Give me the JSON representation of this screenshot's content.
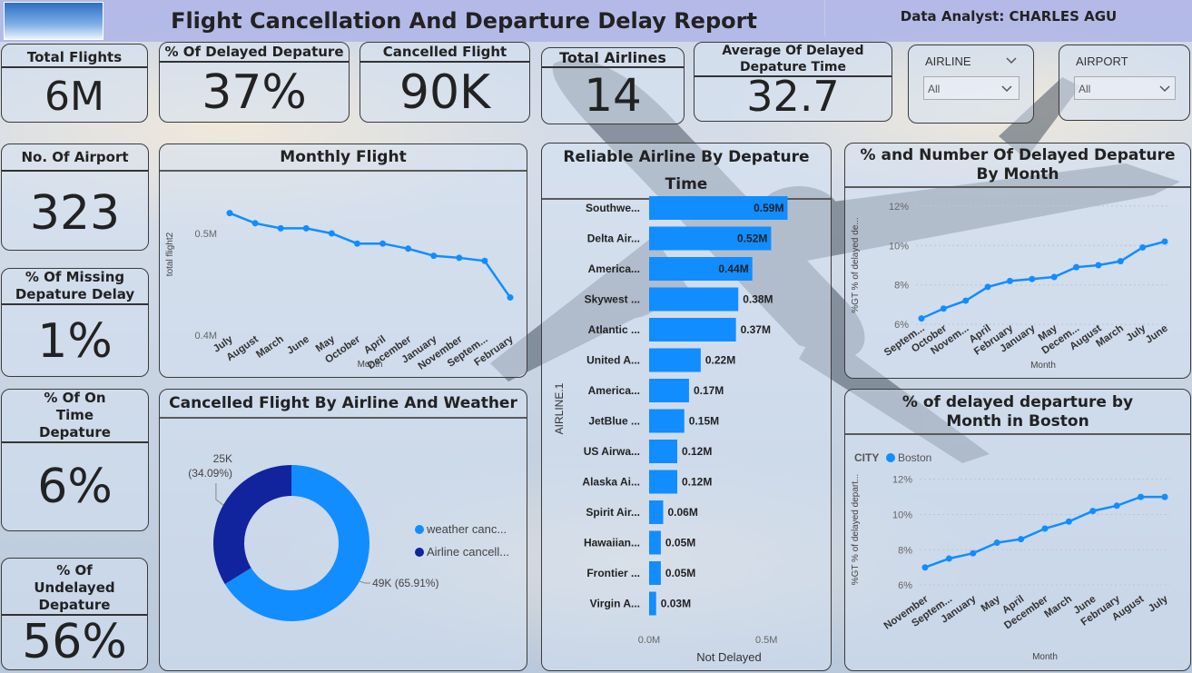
{
  "header": {
    "title": "Flight Cancellation And Departure Delay Report",
    "analyst_label": "Data Analyst:",
    "analyst_name": "CHARLES AGU"
  },
  "kpis": {
    "total_flights": {
      "label": "Total Flights",
      "value": "6M"
    },
    "delayed_departure": {
      "label": "% Of Delayed Depature",
      "value": "37%"
    },
    "cancelled_flight": {
      "label": "Cancelled Flight",
      "value": "90K"
    },
    "total_airlines": {
      "label": "Total Airlines",
      "value": "14"
    },
    "avg_delay": {
      "label": "Average Of Delayed Depature Time",
      "value": "32.7"
    },
    "no_airport": {
      "label": "No. Of Airport",
      "value": "323"
    },
    "missing_delay": {
      "label": "% Of Missing Depature Delay",
      "value": "1%"
    },
    "on_time": {
      "label": "% Of On Time Depature",
      "value": "6%"
    },
    "undelayed": {
      "label": "% Of Undelayed Depature",
      "value": "56%"
    }
  },
  "slicers": {
    "airline": {
      "label": "AIRLINE",
      "value": "All"
    },
    "airport": {
      "label": "AIRPORT",
      "value": "All"
    }
  },
  "colors": {
    "primary": "#118DFF",
    "dark": "#12239E"
  },
  "chart_data": [
    {
      "id": "monthly",
      "type": "line",
      "title": "Monthly Flight",
      "xlabel": "Month",
      "ylabel": "total flight2",
      "categories": [
        "July",
        "August",
        "March",
        "June",
        "May",
        "October",
        "April",
        "December",
        "January",
        "November",
        "Septem...",
        "February"
      ],
      "values": [
        0.52,
        0.51,
        0.505,
        0.505,
        0.5,
        0.49,
        0.49,
        0.485,
        0.478,
        0.476,
        0.473,
        0.437
      ],
      "yticks": [
        {
          "v": 0.4,
          "label": "0.4M"
        },
        {
          "v": 0.5,
          "label": "0.5M"
        }
      ],
      "ylim": [
        0.4,
        0.55
      ]
    },
    {
      "id": "reliable",
      "type": "bar",
      "title": "Reliable Airline By Depature Time",
      "ylabel": "AIRLINE.1",
      "xlabel": "Not Delayed",
      "categories": [
        "Southwe...",
        "Delta Air...",
        "America...",
        "Skywest ...",
        "Atlantic ...",
        "United A...",
        "America...",
        "JetBlue ...",
        "US Airwa...",
        "Alaska Ai...",
        "Spirit Air...",
        "Hawaiian...",
        "Frontier ...",
        "Virgin A..."
      ],
      "values": [
        0.59,
        0.52,
        0.44,
        0.38,
        0.37,
        0.22,
        0.17,
        0.15,
        0.12,
        0.12,
        0.06,
        0.05,
        0.05,
        0.03
      ],
      "labels": [
        "0.59M",
        "0.52M",
        "0.44M",
        "0.38M",
        "0.37M",
        "0.22M",
        "0.17M",
        "0.15M",
        "0.12M",
        "0.12M",
        "0.06M",
        "0.05M",
        "0.05M",
        "0.03M"
      ],
      "xticks": [
        {
          "v": 0,
          "label": "0.0M"
        },
        {
          "v": 0.5,
          "label": "0.5M"
        }
      ],
      "xlim": [
        0,
        0.65
      ]
    },
    {
      "id": "delayed_month",
      "type": "line",
      "title": "% and Number Of Delayed Depature By Month",
      "xlabel": "Month",
      "ylabel": "%GT % of delayed de...",
      "categories": [
        "Septem...",
        "October",
        "Novem...",
        "April",
        "February",
        "January",
        "May",
        "Decem...",
        "August",
        "March",
        "July",
        "June"
      ],
      "values": [
        6.3,
        6.8,
        7.2,
        7.9,
        8.2,
        8.3,
        8.4,
        8.9,
        9.0,
        9.2,
        9.9,
        10.2
      ],
      "yticks": [
        {
          "v": 6,
          "label": "6%"
        },
        {
          "v": 8,
          "label": "8%"
        },
        {
          "v": 10,
          "label": "10%"
        },
        {
          "v": 12,
          "label": "12%"
        }
      ],
      "ylim": [
        5.5,
        12.5
      ]
    },
    {
      "id": "cancelled",
      "type": "pie",
      "title": "Cancelled Flight By Airline And Weather",
      "slices": [
        {
          "name": "weather canc...",
          "value": 49,
          "label": "49K (65.91%)"
        },
        {
          "name": "Airline cancell...",
          "value": 25,
          "label": "25K (34.09%)"
        }
      ]
    },
    {
      "id": "boston",
      "type": "line",
      "title": "% of delayed departure by Month in Boston",
      "legend_title": "CITY",
      "series_name": "Boston",
      "xlabel": "Month",
      "ylabel": "%GT % of delayed depart...",
      "categories": [
        "November",
        "Septem...",
        "January",
        "May",
        "April",
        "December",
        "March",
        "June",
        "February",
        "August",
        "July"
      ],
      "values": [
        7.0,
        7.5,
        7.8,
        8.4,
        8.6,
        9.2,
        9.6,
        10.2,
        10.5,
        11.0,
        11.0
      ],
      "yticks": [
        {
          "v": 6,
          "label": "6%"
        },
        {
          "v": 8,
          "label": "8%"
        },
        {
          "v": 10,
          "label": "10%"
        },
        {
          "v": 12,
          "label": "12%"
        }
      ],
      "ylim": [
        5.8,
        12.5
      ]
    }
  ]
}
